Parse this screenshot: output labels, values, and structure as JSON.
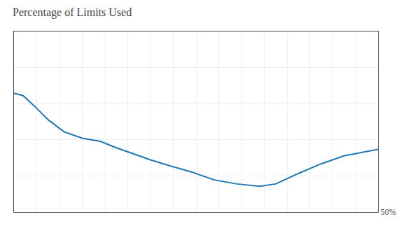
{
  "chart_data": {
    "type": "line",
    "title": "Percentage of Limits Used",
    "x": [
      0,
      0.4,
      0.9,
      1.5,
      2.2,
      3.0,
      3.8,
      4.5,
      5.2,
      6.0,
      6.8,
      7.8,
      8.8,
      9.8,
      10.8,
      11.5,
      12.5,
      13.5,
      14.5,
      15.5,
      16.0
    ],
    "values": [
      64.8,
      64.5,
      63.2,
      61.5,
      60.0,
      59.2,
      58.8,
      58.0,
      57.3,
      56.5,
      55.8,
      55.0,
      54.0,
      53.5,
      53.2,
      53.5,
      54.8,
      56.0,
      57.0,
      57.5,
      57.8
    ],
    "xlim": [
      0,
      16
    ],
    "xticks": [
      0,
      1,
      2,
      3,
      4,
      5,
      6,
      7,
      8,
      9,
      10,
      11,
      12,
      13,
      14,
      15,
      16
    ],
    "ylim": [
      50,
      72.5
    ],
    "yticks": [
      {
        "value": 50,
        "label": "50%"
      },
      {
        "value": 54.5,
        "label": null
      },
      {
        "value": 59,
        "label": null
      },
      {
        "value": 63.5,
        "label": null
      },
      {
        "value": 68,
        "label": null
      },
      {
        "value": 72.5,
        "label": null
      }
    ],
    "tick_labels": "y",
    "grid": true
  }
}
